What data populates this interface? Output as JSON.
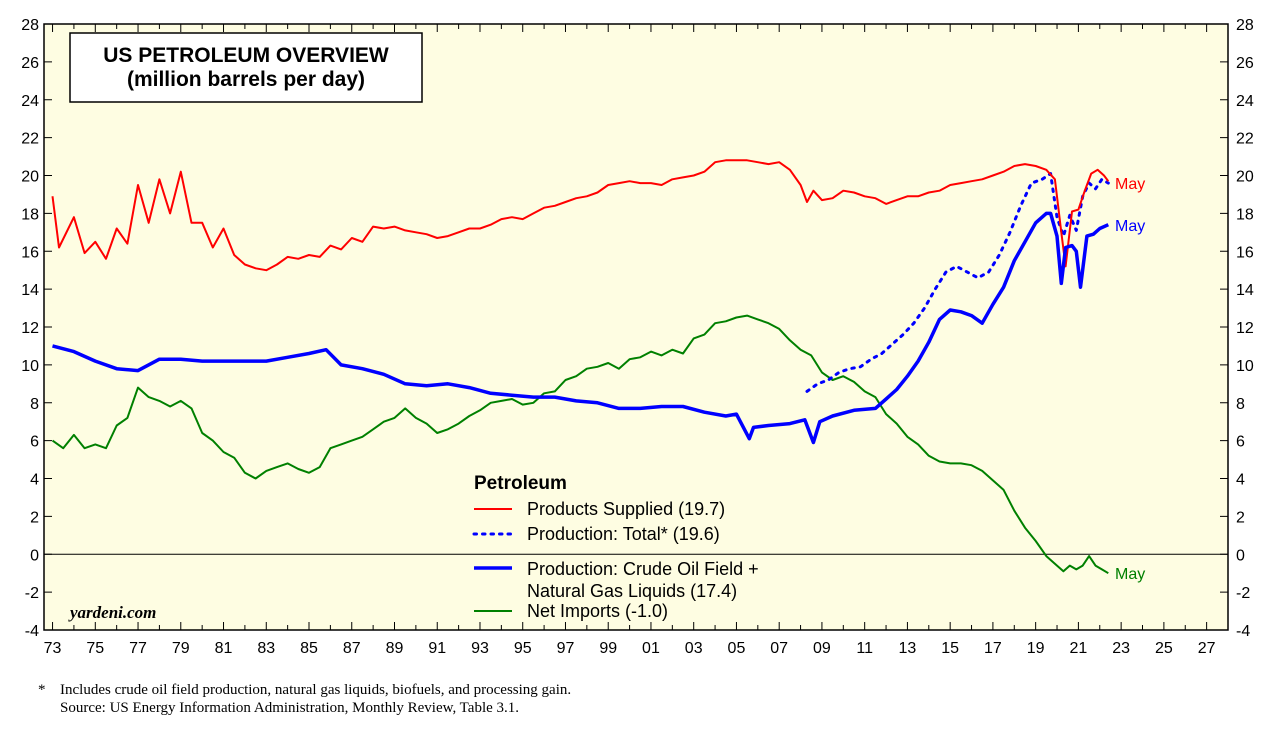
{
  "title": {
    "line1": "US PETROLEUM OVERVIEW",
    "line2": "(million barrels per day)"
  },
  "brand": "yardeni.com",
  "footnote": {
    "asterisk": "*",
    "note": "Includes crude oil field production, natural gas liquids, biofuels, and processing gain.",
    "source": "Source: US Energy Information Administration, Monthly Review, Table 3.1."
  },
  "colors": {
    "plot_bg": "#fefde2",
    "red": "#ff0000",
    "blue": "#0000ff",
    "green": "#008000"
  },
  "chart_data": {
    "type": "line",
    "title": "US PETROLEUM OVERVIEW (million barrels per day)",
    "xlim": [
      1972.6,
      2028
    ],
    "ylim": [
      -4,
      28
    ],
    "y_ticks": [
      -4,
      -2,
      0,
      2,
      4,
      6,
      8,
      10,
      12,
      14,
      16,
      18,
      20,
      22,
      24,
      26,
      28
    ],
    "y_tick_labels": [
      "-4",
      "-2",
      "0",
      "2",
      "4",
      "6",
      "8",
      "10",
      "12",
      "14",
      "16",
      "18",
      "20",
      "22",
      "24",
      "26",
      "28"
    ],
    "x_ticks": [
      1973,
      1975,
      1977,
      1979,
      1981,
      1983,
      1985,
      1987,
      1989,
      1991,
      1993,
      1995,
      1997,
      1999,
      2001,
      2003,
      2005,
      2007,
      2009,
      2011,
      2013,
      2015,
      2017,
      2019,
      2021,
      2023,
      2025,
      2027
    ],
    "x_tick_labels": [
      "73",
      "75",
      "77",
      "79",
      "81",
      "83",
      "85",
      "87",
      "89",
      "91",
      "93",
      "95",
      "97",
      "99",
      "01",
      "03",
      "05",
      "07",
      "09",
      "11",
      "13",
      "15",
      "17",
      "19",
      "21",
      "23",
      "25",
      "27"
    ],
    "zero_line": 0,
    "legend": {
      "title": "Petroleum",
      "placement": "bottom-center",
      "entries": [
        {
          "label": "Products Supplied (19.7)",
          "series": "products_supplied"
        },
        {
          "label": "Production: Total* (19.6)",
          "series": "production_total"
        },
        {
          "label": "Production: Crude Oil Field +",
          "label2": "Natural Gas Liquids (17.4)",
          "series": "production_crude_ngl"
        },
        {
          "label": "Net Imports (-1.0)",
          "series": "net_imports"
        }
      ]
    },
    "end_labels": [
      {
        "text": "May",
        "series": "products_supplied",
        "value": 19.7
      },
      {
        "text": "May",
        "series": "production_crude_ngl",
        "value": 17.4
      },
      {
        "text": "May",
        "series": "net_imports",
        "value": -1.0
      }
    ],
    "series": [
      {
        "id": "products_supplied",
        "name": "Products Supplied",
        "color": "#ff0000",
        "style": "solid",
        "x": [
          1973.0,
          1973.3,
          1974.0,
          1974.5,
          1975.0,
          1975.5,
          1976.0,
          1976.5,
          1977.0,
          1977.5,
          1978.0,
          1978.5,
          1979.0,
          1979.5,
          1980.0,
          1980.5,
          1981.0,
          1981.5,
          1982.0,
          1982.5,
          1983.0,
          1983.5,
          1984.0,
          1984.5,
          1985.0,
          1985.5,
          1986.0,
          1986.5,
          1987.0,
          1987.5,
          1988.0,
          1988.5,
          1989.0,
          1989.5,
          1990.0,
          1990.5,
          1991.0,
          1991.5,
          1992.0,
          1992.5,
          1993.0,
          1993.5,
          1994.0,
          1994.5,
          1995.0,
          1995.5,
          1996.0,
          1996.5,
          1997.0,
          1997.5,
          1998.0,
          1998.5,
          1999.0,
          1999.5,
          2000.0,
          2000.5,
          2001.0,
          2001.5,
          2002.0,
          2002.5,
          2003.0,
          2003.5,
          2004.0,
          2004.5,
          2005.0,
          2005.5,
          2006.0,
          2006.5,
          2007.0,
          2007.5,
          2008.0,
          2008.3,
          2008.6,
          2009.0,
          2009.5,
          2010.0,
          2010.5,
          2011.0,
          2011.5,
          2012.0,
          2012.5,
          2013.0,
          2013.5,
          2014.0,
          2014.5,
          2015.0,
          2015.5,
          2016.0,
          2016.5,
          2017.0,
          2017.5,
          2018.0,
          2018.5,
          2019.0,
          2019.5,
          2019.9,
          2020.2,
          2020.4,
          2020.7,
          2021.0,
          2021.3,
          2021.6,
          2021.9,
          2022.2,
          2022.4
        ],
        "values": [
          18.9,
          16.2,
          17.8,
          15.9,
          16.5,
          15.6,
          17.2,
          16.4,
          19.5,
          17.5,
          19.8,
          18.0,
          20.2,
          17.5,
          17.5,
          16.2,
          17.2,
          15.8,
          15.3,
          15.1,
          15.0,
          15.3,
          15.7,
          15.6,
          15.8,
          15.7,
          16.3,
          16.1,
          16.7,
          16.5,
          17.3,
          17.2,
          17.3,
          17.1,
          17.0,
          16.9,
          16.7,
          16.8,
          17.0,
          17.2,
          17.2,
          17.4,
          17.7,
          17.8,
          17.7,
          18.0,
          18.3,
          18.4,
          18.6,
          18.8,
          18.9,
          19.1,
          19.5,
          19.6,
          19.7,
          19.6,
          19.6,
          19.5,
          19.8,
          19.9,
          20.0,
          20.2,
          20.7,
          20.8,
          20.8,
          20.8,
          20.7,
          20.6,
          20.7,
          20.3,
          19.5,
          18.6,
          19.2,
          18.7,
          18.8,
          19.2,
          19.1,
          18.9,
          18.8,
          18.5,
          18.7,
          18.9,
          18.9,
          19.1,
          19.2,
          19.5,
          19.6,
          19.7,
          19.8,
          20.0,
          20.2,
          20.5,
          20.6,
          20.5,
          20.3,
          19.8,
          17.0,
          15.2,
          18.1,
          18.2,
          19.2,
          20.1,
          20.3,
          20.0,
          19.7
        ]
      },
      {
        "id": "production_total",
        "name": "Production: Total*",
        "color": "#0000ff",
        "style": "dotted",
        "x": [
          2008.3,
          2008.8,
          2009.3,
          2009.8,
          2010.3,
          2010.8,
          2011.3,
          2011.8,
          2012.3,
          2012.8,
          2013.3,
          2013.8,
          2014.3,
          2014.8,
          2015.3,
          2015.8,
          2016.3,
          2016.8,
          2017.3,
          2017.8,
          2018.3,
          2018.8,
          2019.3,
          2019.7,
          2020.0,
          2020.3,
          2020.6,
          2020.9,
          2021.2,
          2021.5,
          2021.8,
          2022.1,
          2022.4
        ],
        "values": [
          8.6,
          9.0,
          9.2,
          9.6,
          9.8,
          9.9,
          10.3,
          10.6,
          11.1,
          11.6,
          12.2,
          13.0,
          14.0,
          14.9,
          15.2,
          14.9,
          14.6,
          14.9,
          15.8,
          17.0,
          18.4,
          19.6,
          19.8,
          20.1,
          17.8,
          16.8,
          17.9,
          17.1,
          18.9,
          19.6,
          19.3,
          19.8,
          19.6
        ]
      },
      {
        "id": "production_crude_ngl",
        "name": "Production: Crude Oil Field + Natural Gas Liquids",
        "color": "#0000ff",
        "style": "solid",
        "x": [
          1973.0,
          1974.0,
          1975.0,
          1976.0,
          1977.0,
          1978.0,
          1979.0,
          1980.0,
          1981.0,
          1982.0,
          1983.0,
          1984.0,
          1985.0,
          1985.8,
          1986.5,
          1987.5,
          1988.5,
          1989.5,
          1990.5,
          1991.5,
          1992.5,
          1993.5,
          1994.5,
          1995.5,
          1996.5,
          1997.5,
          1998.5,
          1999.5,
          2000.5,
          2001.5,
          2002.5,
          2003.5,
          2004.5,
          2005.0,
          2005.6,
          2005.8,
          2006.5,
          2007.5,
          2008.2,
          2008.6,
          2008.9,
          2009.5,
          2010.5,
          2011.5,
          2012.0,
          2012.5,
          2013.0,
          2013.5,
          2014.0,
          2014.5,
          2015.0,
          2015.5,
          2016.0,
          2016.5,
          2017.0,
          2017.5,
          2018.0,
          2018.5,
          2019.0,
          2019.5,
          2019.7,
          2020.0,
          2020.2,
          2020.4,
          2020.7,
          2020.9,
          2021.1,
          2021.4,
          2021.7,
          2022.0,
          2022.4
        ],
        "values": [
          11.0,
          10.7,
          10.2,
          9.8,
          9.7,
          10.3,
          10.3,
          10.2,
          10.2,
          10.2,
          10.2,
          10.4,
          10.6,
          10.8,
          10.0,
          9.8,
          9.5,
          9.0,
          8.9,
          9.0,
          8.8,
          8.5,
          8.4,
          8.3,
          8.3,
          8.1,
          8.0,
          7.7,
          7.7,
          7.8,
          7.8,
          7.5,
          7.3,
          7.4,
          6.1,
          6.7,
          6.8,
          6.9,
          7.1,
          5.9,
          7.0,
          7.3,
          7.6,
          7.7,
          8.2,
          8.7,
          9.4,
          10.2,
          11.2,
          12.4,
          12.9,
          12.8,
          12.6,
          12.2,
          13.2,
          14.1,
          15.5,
          16.5,
          17.5,
          18.0,
          18.0,
          16.8,
          14.3,
          16.2,
          16.3,
          16.0,
          14.1,
          16.8,
          16.9,
          17.2,
          17.4
        ]
      },
      {
        "id": "net_imports",
        "name": "Net Imports",
        "color": "#008000",
        "style": "solid",
        "x": [
          1973.0,
          1973.5,
          1974.0,
          1974.5,
          1975.0,
          1975.5,
          1976.0,
          1976.5,
          1977.0,
          1977.5,
          1978.0,
          1978.5,
          1979.0,
          1979.5,
          1980.0,
          1980.5,
          1981.0,
          1981.5,
          1982.0,
          1982.5,
          1983.0,
          1983.5,
          1984.0,
          1984.5,
          1985.0,
          1985.5,
          1986.0,
          1986.5,
          1987.0,
          1987.5,
          1988.0,
          1988.5,
          1989.0,
          1989.5,
          1990.0,
          1990.5,
          1991.0,
          1991.5,
          1992.0,
          1992.5,
          1993.0,
          1993.5,
          1994.0,
          1994.5,
          1995.0,
          1995.5,
          1996.0,
          1996.5,
          1997.0,
          1997.5,
          1998.0,
          1998.5,
          1999.0,
          1999.5,
          2000.0,
          2000.5,
          2001.0,
          2001.5,
          2002.0,
          2002.5,
          2003.0,
          2003.5,
          2004.0,
          2004.5,
          2005.0,
          2005.5,
          2006.0,
          2006.5,
          2007.0,
          2007.5,
          2008.0,
          2008.5,
          2009.0,
          2009.5,
          2010.0,
          2010.5,
          2011.0,
          2011.5,
          2012.0,
          2012.5,
          2013.0,
          2013.5,
          2014.0,
          2014.5,
          2015.0,
          2015.5,
          2016.0,
          2016.5,
          2017.0,
          2017.5,
          2018.0,
          2018.5,
          2019.0,
          2019.5,
          2020.0,
          2020.3,
          2020.6,
          2020.9,
          2021.2,
          2021.5,
          2021.8,
          2022.1,
          2022.4
        ],
        "values": [
          6.0,
          5.6,
          6.3,
          5.6,
          5.8,
          5.6,
          6.8,
          7.2,
          8.8,
          8.3,
          8.1,
          7.8,
          8.1,
          7.7,
          6.4,
          6.0,
          5.4,
          5.1,
          4.3,
          4.0,
          4.4,
          4.6,
          4.8,
          4.5,
          4.3,
          4.6,
          5.6,
          5.8,
          6.0,
          6.2,
          6.6,
          7.0,
          7.2,
          7.7,
          7.2,
          6.9,
          6.4,
          6.6,
          6.9,
          7.3,
          7.6,
          8.0,
          8.1,
          8.2,
          7.9,
          8.0,
          8.5,
          8.6,
          9.2,
          9.4,
          9.8,
          9.9,
          10.1,
          9.8,
          10.3,
          10.4,
          10.7,
          10.5,
          10.8,
          10.6,
          11.4,
          11.6,
          12.2,
          12.3,
          12.5,
          12.6,
          12.4,
          12.2,
          11.9,
          11.3,
          10.8,
          10.5,
          9.6,
          9.2,
          9.4,
          9.1,
          8.6,
          8.3,
          7.4,
          6.9,
          6.2,
          5.8,
          5.2,
          4.9,
          4.8,
          4.8,
          4.7,
          4.4,
          3.9,
          3.4,
          2.3,
          1.4,
          0.7,
          -0.1,
          -0.6,
          -0.9,
          -0.6,
          -0.8,
          -0.6,
          -0.1,
          -0.6,
          -0.8,
          -1.0
        ]
      }
    ]
  }
}
